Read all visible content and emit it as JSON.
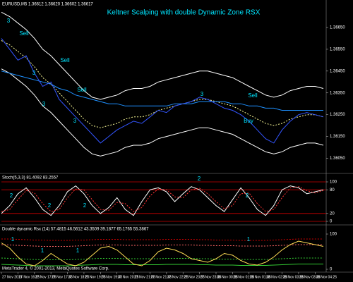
{
  "chart_data": [
    {
      "type": "line",
      "title": "Keltner Scalping with double Dynamic Zone RSX",
      "subtitle": "EURUSD,M5  1.36612 1.36620 1.36602 1.36617",
      "categories": [
        "27 Nov 2013",
        null,
        "27 Nov 16:25",
        null,
        "27 Nov 17:05",
        null,
        "27 Nov 17:45",
        null,
        "27 Nov 18:25",
        null,
        "27 Nov 19:05",
        null,
        "27 Nov 19:45",
        null,
        "27 Nov 20:25",
        null,
        "27 Nov 21:05",
        null,
        "27 Nov 21:45",
        null,
        "27 Nov 22:25",
        null,
        "27 Nov 23:05",
        null,
        "27 Nov 23:45",
        null,
        "28 Nov 00:25",
        null,
        "28 Nov 01:05",
        null,
        "28 Nov 01:45",
        null,
        "28 Nov 02:25",
        null,
        "28 Nov 03:05",
        null,
        "28 Nov 03:45",
        null,
        "28 Nov 04:25",
        null
      ],
      "series": [
        {
          "color": "#ffffff",
          "dash": false,
          "values": [
            1.3672,
            1.367,
            1.3667,
            1.3664,
            1.366,
            1.3655,
            1.3652,
            1.3648,
            1.3644,
            1.364,
            1.3636,
            1.3633,
            1.3632,
            1.3633,
            1.3634,
            1.3636,
            1.3637,
            1.3637,
            1.3638,
            1.364,
            1.3641,
            1.3642,
            1.3643,
            1.3644,
            1.3645,
            1.3645,
            1.3644,
            1.3643,
            1.3642,
            1.364,
            1.3638,
            1.3636,
            1.3634,
            1.3633,
            1.3634,
            1.3636,
            1.3637,
            1.3638,
            1.3638,
            1.3637
          ]
        },
        {
          "color": "#ffffff",
          "dash": false,
          "values": [
            1.3646,
            1.3644,
            1.3641,
            1.3638,
            1.3634,
            1.3629,
            1.3626,
            1.3622,
            1.3618,
            1.3614,
            1.361,
            1.3607,
            1.3606,
            1.3607,
            1.3608,
            1.361,
            1.3611,
            1.3611,
            1.3612,
            1.3614,
            1.3615,
            1.3616,
            1.3617,
            1.3618,
            1.3619,
            1.3619,
            1.3618,
            1.3617,
            1.3616,
            1.3614,
            1.3612,
            1.361,
            1.3608,
            1.3607,
            1.3608,
            1.361,
            1.3611,
            1.3612,
            1.3612,
            1.3611
          ]
        },
        {
          "color": "#ffff99",
          "dash": true,
          "values": [
            1.3659,
            1.3657,
            1.3654,
            1.3651,
            1.3647,
            1.3642,
            1.3639,
            1.3635,
            1.3631,
            1.3627,
            1.3623,
            1.362,
            1.3619,
            1.362,
            1.3621,
            1.3623,
            1.3624,
            1.3624,
            1.3625,
            1.3627,
            1.3628,
            1.3629,
            1.363,
            1.3631,
            1.3632,
            1.3632,
            1.3631,
            1.363,
            1.3629,
            1.3627,
            1.3625,
            1.3623,
            1.3621,
            1.362,
            1.3621,
            1.3623,
            1.3624,
            1.3625,
            1.3625,
            1.3624
          ]
        },
        {
          "color": "#1e90ff",
          "dash": false,
          "values": [
            1.3645,
            1.3644,
            1.3643,
            1.3642,
            1.3641,
            1.364,
            1.3639,
            1.3637,
            1.3636,
            1.3634,
            1.3633,
            1.3632,
            1.3631,
            1.363,
            1.363,
            1.3629,
            1.3629,
            1.3629,
            1.3629,
            1.3629,
            1.3629,
            1.363,
            1.363,
            1.363,
            1.3631,
            1.3631,
            1.3631,
            1.3631,
            1.363,
            1.363,
            1.3629,
            1.3629,
            1.3628,
            1.3628,
            1.3627,
            1.3627,
            1.3627,
            1.3627,
            1.3627,
            1.3627
          ]
        },
        {
          "color": "#3355ff",
          "dash": false,
          "values": [
            1.366,
            1.3655,
            1.365,
            1.3652,
            1.3644,
            1.3638,
            1.364,
            1.3632,
            1.3628,
            1.3624,
            1.362,
            1.3616,
            1.3612,
            1.3615,
            1.3618,
            1.362,
            1.3622,
            1.3621,
            1.3624,
            1.3627,
            1.3626,
            1.3629,
            1.363,
            1.3631,
            1.3633,
            1.3632,
            1.363,
            1.3628,
            1.3627,
            1.3625,
            1.3622,
            1.3618,
            1.3614,
            1.3612,
            1.3618,
            1.3622,
            1.3625,
            1.3626,
            1.3625,
            1.3624
          ]
        }
      ],
      "ylim": [
        1.36,
        1.3675
      ],
      "yticks": [
        {
          "value": 1.3605,
          "label": "1.36050"
        },
        {
          "value": 1.3615,
          "label": "1.36150"
        },
        {
          "value": 1.3625,
          "label": "1.36250"
        },
        {
          "value": 1.3635,
          "label": "1.36350"
        },
        {
          "value": 1.3645,
          "label": "1.36450"
        },
        {
          "value": 1.3655,
          "label": "1.36550"
        },
        {
          "value": 1.3665,
          "label": "1.36650"
        }
      ],
      "grid": false,
      "annotations": [
        "Sell",
        "Sell",
        "Sell",
        "Sell",
        "3",
        "3",
        "3",
        "3",
        "3",
        "Buy"
      ]
    },
    {
      "type": "line",
      "title": "Stoch(5,3,3) 81.4092 83.2557",
      "series": [
        {
          "color": "#ffffff",
          "dash": false,
          "values": [
            20,
            40,
            70,
            85,
            60,
            30,
            15,
            40,
            75,
            90,
            70,
            40,
            20,
            35,
            60,
            30,
            15,
            50,
            80,
            85,
            75,
            50,
            70,
            88,
            80,
            60,
            40,
            25,
            55,
            85,
            60,
            30,
            15,
            40,
            80,
            90,
            85,
            70,
            75,
            80
          ]
        },
        {
          "color": "#ff3333",
          "dash": true,
          "values": [
            25,
            30,
            55,
            78,
            72,
            45,
            25,
            30,
            60,
            82,
            80,
            55,
            30,
            28,
            48,
            45,
            25,
            35,
            65,
            82,
            80,
            62,
            60,
            80,
            84,
            70,
            50,
            32,
            40,
            70,
            72,
            45,
            25,
            30,
            60,
            85,
            88,
            78,
            72,
            78
          ]
        }
      ],
      "ylim": [
        0,
        100
      ],
      "yticks": [
        0,
        20,
        80,
        100
      ],
      "grid": true,
      "grid_color": "#cc0000",
      "annotations": [
        "2",
        "2",
        "2",
        "2",
        "2"
      ]
    },
    {
      "type": "line",
      "title": "Double dynamic Rsx (14) 57.4815 46.5612 43.3509 39.1877 65.1765 55.3867",
      "series": [
        {
          "color": "#cc0000",
          "dash": true,
          "values": [
            86,
            86,
            85,
            84,
            83,
            83,
            82,
            82,
            82,
            83,
            83,
            84,
            85,
            85,
            85,
            84,
            84,
            84,
            84,
            84,
            85,
            85,
            85,
            85,
            84,
            84,
            83,
            83,
            83,
            82,
            82,
            82,
            82,
            83,
            84,
            85,
            86,
            86,
            86,
            86
          ]
        },
        {
          "color": "#ff6666",
          "dash": true,
          "values": [
            70,
            69,
            68,
            67,
            66,
            65,
            65,
            65,
            65,
            66,
            67,
            68,
            69,
            69,
            69,
            68,
            68,
            68,
            68,
            68,
            69,
            69,
            69,
            69,
            68,
            68,
            67,
            67,
            67,
            66,
            66,
            66,
            66,
            67,
            68,
            69,
            70,
            70,
            70,
            70
          ]
        },
        {
          "color": "#33cc33",
          "dash": true,
          "values": [
            32,
            31,
            30,
            29,
            28,
            27,
            27,
            27,
            27,
            28,
            29,
            30,
            31,
            31,
            31,
            30,
            30,
            30,
            30,
            30,
            31,
            31,
            31,
            31,
            30,
            30,
            29,
            29,
            29,
            28,
            28,
            28,
            28,
            29,
            30,
            31,
            32,
            32,
            32,
            32
          ]
        },
        {
          "color": "#33cc33",
          "dash": false,
          "values": [
            14,
            13,
            12,
            11,
            10,
            10,
            10,
            10,
            10,
            11,
            12,
            13,
            14,
            14,
            14,
            13,
            13,
            13,
            13,
            13,
            14,
            14,
            14,
            14,
            13,
            13,
            12,
            12,
            12,
            11,
            11,
            11,
            11,
            12,
            13,
            14,
            15,
            15,
            15,
            15
          ]
        },
        {
          "color": "#ffdd55",
          "dash": false,
          "values": [
            75,
            60,
            35,
            15,
            10,
            25,
            45,
            30,
            15,
            10,
            20,
            40,
            60,
            65,
            55,
            35,
            15,
            10,
            25,
            50,
            60,
            55,
            45,
            30,
            25,
            20,
            30,
            45,
            40,
            25,
            15,
            12,
            20,
            35,
            55,
            70,
            80,
            75,
            70,
            65
          ]
        }
      ],
      "ylim": [
        0,
        100
      ],
      "yticks": [
        0,
        100
      ],
      "grid": false,
      "annotations": [
        "1",
        "1",
        "1",
        "1"
      ]
    }
  ],
  "footer": "MetaTrader 4, © 2001-2013, MetaQuotes Software Corp."
}
